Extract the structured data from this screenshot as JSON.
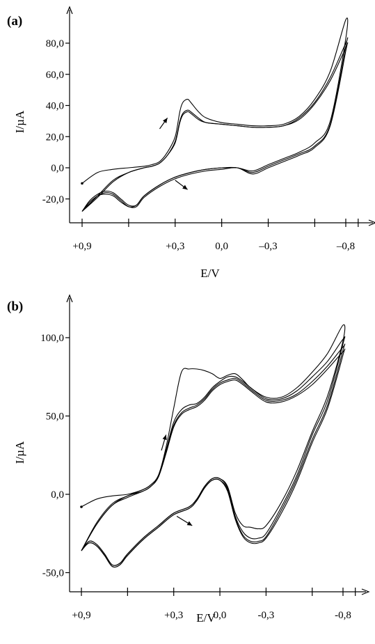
{
  "chart_data": [
    {
      "type": "line",
      "panel_label": "(a)",
      "xlabel": "E/V",
      "ylabel": "I/µA",
      "x_reversed": true,
      "xlim": [
        0.9,
        -0.9
      ],
      "ylim": [
        -30,
        96
      ],
      "x_ticks": [
        0.9,
        0.6,
        0.3,
        0.0,
        -0.3,
        -0.6,
        -0.8
      ],
      "x_tick_labels": [
        {
          "value": 0.9,
          "label": "+0,9"
        },
        {
          "value": 0.3,
          "label": "+0,3"
        },
        {
          "value": 0.0,
          "label": "0,0"
        },
        {
          "value": -0.3,
          "label": "–0,3"
        },
        {
          "value": -0.8,
          "label": "–0,8"
        }
      ],
      "y_ticks": [
        -20,
        0,
        20,
        40,
        60,
        80
      ],
      "y_tick_labels": [
        {
          "value": -20,
          "label": "-20,0"
        },
        {
          "value": 0,
          "label": "0,0"
        },
        {
          "value": 20,
          "label": "20,0"
        },
        {
          "value": 40,
          "label": "40,0"
        },
        {
          "value": 60,
          "label": "60,0"
        },
        {
          "value": 80,
          "label": "80,0"
        }
      ],
      "arrows": [
        {
          "direction": "anodic",
          "x": [
            0.4,
            0.35
          ],
          "y": [
            25,
            32
          ]
        },
        {
          "direction": "cathodic",
          "x": [
            0.3,
            0.22
          ],
          "y": [
            -8,
            -14
          ]
        }
      ],
      "series": [
        {
          "x": [
            0.9,
            0.8,
            0.7,
            0.6,
            0.5,
            0.45,
            0.4,
            0.35,
            0.3,
            0.27,
            0.25,
            0.22,
            0.2,
            0.15,
            0.1,
            0.0,
            -0.1,
            -0.2,
            -0.3,
            -0.4,
            -0.5,
            -0.6,
            -0.7,
            -0.8,
            -0.8,
            -0.7,
            -0.6,
            -0.5,
            -0.4,
            -0.3,
            -0.2,
            -0.1,
            0.0,
            0.1,
            0.2,
            0.3,
            0.4,
            0.5,
            0.55,
            0.6,
            0.65,
            0.7,
            0.75,
            0.8,
            0.85,
            0.9
          ],
          "y": [
            -10,
            -3,
            -1,
            0,
            1,
            2,
            4,
            10,
            20,
            36,
            42,
            44,
            42,
            36,
            32,
            29,
            28,
            27,
            27,
            28,
            33,
            44,
            62,
            95,
            83,
            30,
            16,
            10,
            6,
            2,
            -2,
            0,
            0,
            -1,
            -3,
            -6,
            -11,
            -18,
            -24,
            -24,
            -20,
            -16,
            -15,
            -17,
            -21,
            -28
          ]
        },
        {
          "x": [
            0.9,
            0.8,
            0.7,
            0.6,
            0.5,
            0.45,
            0.4,
            0.35,
            0.3,
            0.27,
            0.25,
            0.22,
            0.2,
            0.15,
            0.1,
            0.0,
            -0.1,
            -0.2,
            -0.3,
            -0.4,
            -0.5,
            -0.6,
            -0.7,
            -0.8,
            -0.8,
            -0.7,
            -0.6,
            -0.5,
            -0.4,
            -0.3,
            -0.2,
            -0.1,
            0.0,
            0.1,
            0.2,
            0.3,
            0.4,
            0.5,
            0.55,
            0.6,
            0.65,
            0.7,
            0.75,
            0.8,
            0.85,
            0.9
          ],
          "y": [
            -28,
            -18,
            -8,
            -3,
            0,
            1,
            3,
            8,
            17,
            30,
            35,
            37,
            36,
            32,
            29,
            28,
            27,
            26,
            26,
            27,
            32,
            42,
            58,
            80,
            78,
            28,
            14,
            9,
            5,
            1,
            -3,
            0,
            0,
            -1,
            -3,
            -6,
            -11,
            -18,
            -24,
            -25,
            -21,
            -17,
            -16,
            -18,
            -22,
            -28
          ]
        },
        {
          "x": [
            0.9,
            0.8,
            0.7,
            0.6,
            0.5,
            0.45,
            0.4,
            0.35,
            0.3,
            0.27,
            0.25,
            0.22,
            0.2,
            0.15,
            0.1,
            0.0,
            -0.1,
            -0.2,
            -0.3,
            -0.4,
            -0.5,
            -0.6,
            -0.7,
            -0.8,
            -0.8,
            -0.7,
            -0.6,
            -0.5,
            -0.4,
            -0.3,
            -0.2,
            -0.1,
            0.0,
            0.1,
            0.2,
            0.3,
            0.4,
            0.5,
            0.55,
            0.6,
            0.65,
            0.7,
            0.75,
            0.8,
            0.85,
            0.9
          ],
          "y": [
            -28,
            -19,
            -9,
            -3,
            0,
            1,
            3,
            8,
            16,
            29,
            34,
            36,
            35,
            31,
            29,
            28,
            27,
            26,
            26,
            27,
            31,
            41,
            56,
            77,
            75,
            27,
            13,
            8,
            4,
            0,
            -4,
            0,
            -1,
            -2,
            -4,
            -7,
            -12,
            -19,
            -25,
            -25,
            -22,
            -18,
            -17,
            -18,
            -23,
            -28
          ]
        }
      ]
    },
    {
      "type": "line",
      "panel_label": "(b)",
      "xlabel": "E/V",
      "ylabel": "I/µA",
      "x_reversed": true,
      "xlim": [
        0.9,
        -0.9
      ],
      "ylim": [
        -55,
        125
      ],
      "x_ticks": [
        0.9,
        0.6,
        0.3,
        0.0,
        -0.3,
        -0.6,
        -0.8
      ],
      "x_tick_labels": [
        {
          "value": 0.9,
          "label": "+0,9"
        },
        {
          "value": 0.3,
          "label": "+0,3"
        },
        {
          "value": 0.0,
          "label": "0,0"
        },
        {
          "value": -0.3,
          "label": "-0,3"
        },
        {
          "value": -0.8,
          "label": "-0,8"
        }
      ],
      "y_ticks": [
        -50,
        0,
        50,
        100
      ],
      "y_tick_labels": [
        {
          "value": -50,
          "label": "-50,0"
        },
        {
          "value": 0,
          "label": "0,0"
        },
        {
          "value": 50,
          "label": "50,0"
        },
        {
          "value": 100,
          "label": "100,0"
        }
      ],
      "arrows": [
        {
          "direction": "anodic",
          "x": [
            0.38,
            0.35
          ],
          "y": [
            28,
            38
          ]
        },
        {
          "direction": "cathodic",
          "x": [
            0.28,
            0.18
          ],
          "y": [
            -14,
            -20
          ]
        }
      ],
      "series": [
        {
          "x": [
            0.9,
            0.8,
            0.7,
            0.6,
            0.5,
            0.45,
            0.4,
            0.35,
            0.3,
            0.25,
            0.2,
            0.15,
            0.1,
            0.05,
            0.0,
            -0.05,
            -0.1,
            -0.15,
            -0.2,
            -0.3,
            -0.4,
            -0.5,
            -0.6,
            -0.7,
            -0.8,
            -0.8,
            -0.7,
            -0.6,
            -0.5,
            -0.4,
            -0.3,
            -0.25,
            -0.2,
            -0.15,
            -0.1,
            -0.05,
            0.0,
            0.05,
            0.1,
            0.15,
            0.2,
            0.3,
            0.4,
            0.5,
            0.6,
            0.65,
            0.7,
            0.75,
            0.8,
            0.85,
            0.9
          ],
          "y": [
            -8,
            -3,
            -1,
            0,
            3,
            6,
            12,
            30,
            55,
            78,
            80,
            80,
            79,
            77,
            74,
            76,
            77,
            73,
            68,
            62,
            62,
            68,
            78,
            90,
            108,
            98,
            63,
            40,
            15,
            -5,
            -20,
            -22,
            -21,
            -20,
            -12,
            5,
            10,
            10,
            5,
            -3,
            -8,
            -12,
            -20,
            -28,
            -38,
            -44,
            -45,
            -38,
            -32,
            -30,
            -36
          ]
        },
        {
          "x": [
            0.9,
            0.8,
            0.7,
            0.6,
            0.5,
            0.45,
            0.4,
            0.35,
            0.3,
            0.25,
            0.2,
            0.15,
            0.1,
            0.05,
            0.0,
            -0.05,
            -0.1,
            -0.15,
            -0.2,
            -0.3,
            -0.4,
            -0.5,
            -0.6,
            -0.7,
            -0.8,
            -0.8,
            -0.7,
            -0.6,
            -0.5,
            -0.4,
            -0.3,
            -0.25,
            -0.2,
            -0.15,
            -0.1,
            -0.05,
            0.0,
            0.05,
            0.1,
            0.15,
            0.2,
            0.3,
            0.4,
            0.5,
            0.6,
            0.65,
            0.7,
            0.75,
            0.8,
            0.85,
            0.9
          ],
          "y": [
            -36,
            -18,
            -6,
            -1,
            3,
            6,
            12,
            28,
            46,
            54,
            57,
            58,
            62,
            68,
            72,
            75,
            75,
            72,
            68,
            61,
            61,
            66,
            75,
            85,
            99,
            96,
            60,
            38,
            12,
            -8,
            -25,
            -28,
            -28,
            -24,
            -14,
            4,
            10,
            10,
            5,
            -3,
            -8,
            -12,
            -20,
            -28,
            -38,
            -44,
            -45,
            -38,
            -32,
            -30,
            -36
          ]
        },
        {
          "x": [
            0.9,
            0.8,
            0.7,
            0.6,
            0.5,
            0.45,
            0.4,
            0.35,
            0.3,
            0.25,
            0.2,
            0.15,
            0.1,
            0.05,
            0.0,
            -0.05,
            -0.1,
            -0.15,
            -0.2,
            -0.3,
            -0.4,
            -0.5,
            -0.6,
            -0.7,
            -0.8,
            -0.8,
            -0.7,
            -0.6,
            -0.5,
            -0.4,
            -0.3,
            -0.25,
            -0.2,
            -0.15,
            -0.1,
            -0.05,
            0.0,
            0.05,
            0.1,
            0.15,
            0.2,
            0.3,
            0.4,
            0.5,
            0.6,
            0.65,
            0.7,
            0.75,
            0.8,
            0.85,
            0.9
          ],
          "y": [
            -36,
            -19,
            -7,
            -1,
            2,
            5,
            11,
            27,
            44,
            52,
            55,
            57,
            61,
            67,
            71,
            73,
            74,
            71,
            67,
            60,
            60,
            64,
            72,
            82,
            94,
            92,
            57,
            35,
            10,
            -10,
            -27,
            -30,
            -30,
            -26,
            -15,
            3,
            9,
            9,
            4,
            -4,
            -9,
            -13,
            -21,
            -29,
            -39,
            -45,
            -46,
            -39,
            -33,
            -31,
            -36
          ]
        },
        {
          "x": [
            0.9,
            0.8,
            0.7,
            0.6,
            0.5,
            0.45,
            0.4,
            0.35,
            0.3,
            0.25,
            0.2,
            0.15,
            0.1,
            0.05,
            0.0,
            -0.05,
            -0.1,
            -0.15,
            -0.2,
            -0.3,
            -0.4,
            -0.5,
            -0.6,
            -0.7,
            -0.8,
            -0.8,
            -0.7,
            -0.6,
            -0.5,
            -0.4,
            -0.3,
            -0.25,
            -0.2,
            -0.15,
            -0.1,
            -0.05,
            0.0,
            0.05,
            0.1,
            0.15,
            0.2,
            0.3,
            0.4,
            0.5,
            0.6,
            0.65,
            0.7,
            0.75,
            0.8,
            0.85,
            0.9
          ],
          "y": [
            -36,
            -19,
            -7,
            -2,
            2,
            5,
            11,
            26,
            43,
            51,
            54,
            56,
            60,
            66,
            70,
            72,
            73,
            70,
            66,
            59,
            59,
            63,
            70,
            80,
            91,
            89,
            55,
            33,
            8,
            -12,
            -28,
            -31,
            -31,
            -27,
            -16,
            2,
            9,
            9,
            4,
            -4,
            -9,
            -13,
            -21,
            -29,
            -39,
            -45,
            -46,
            -39,
            -33,
            -31,
            -36
          ]
        }
      ]
    }
  ]
}
